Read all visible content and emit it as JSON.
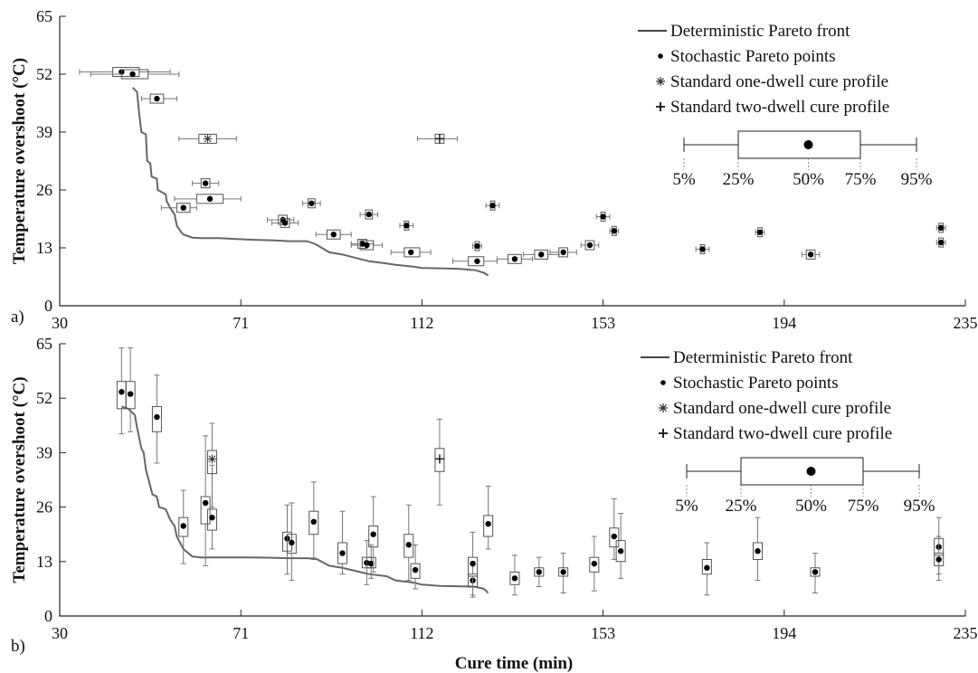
{
  "figure": {
    "xlabel": "Cure time (min)",
    "panel_tags": [
      "a)",
      "b)"
    ]
  },
  "chart_data": [
    {
      "type": "scatter",
      "panel": "a)",
      "ylabel": "Temperature overshoot (°C)",
      "xlabel": "",
      "xlim": [
        30,
        235
      ],
      "ylim": [
        0,
        65
      ],
      "x_ticks": [
        30,
        71,
        112,
        153,
        194,
        235
      ],
      "y_ticks": [
        0,
        13,
        26,
        39,
        52,
        65
      ],
      "error_axis": "x",
      "legend": {
        "placement": "top-right",
        "entries": [
          "Deterministic Pareto front",
          "Stochastic Pareto points",
          "Standard one-dwell cure profile",
          "Standard two-dwell cure profile"
        ],
        "box_labels": [
          "5%",
          "25%",
          "50%",
          "75%",
          "95%"
        ]
      },
      "series": [
        {
          "name": "Deterministic Pareto front",
          "kind": "line",
          "color": "#666666",
          "x": [
            46.5,
            47.5,
            48,
            48.5,
            49.5,
            49.8,
            50.5,
            50.8,
            52,
            52.2,
            54,
            54.2,
            55,
            56,
            56.5,
            57.5,
            58,
            60,
            62,
            66,
            70,
            74,
            78,
            82,
            86,
            88,
            91,
            94,
            98,
            100,
            104,
            106,
            110,
            112,
            116,
            120,
            124,
            126,
            127
          ],
          "y": [
            49,
            48,
            43,
            39,
            38.5,
            32.5,
            32,
            29,
            28.5,
            26,
            25,
            23.5,
            22,
            20.5,
            18,
            16.5,
            16,
            15.3,
            15.2,
            15.2,
            15,
            14.8,
            14.7,
            14.5,
            14.5,
            13.8,
            12,
            11.5,
            10.5,
            10,
            9.5,
            9.2,
            8.8,
            8.5,
            8.4,
            8.3,
            8,
            7.4,
            6.8
          ]
        },
        {
          "name": "Stochastic Pareto points",
          "kind": "points",
          "points": [
            {
              "x": 44,
              "y": 52.5,
              "lo": 34.5,
              "q1": 42,
              "q3": 48,
              "hi": 55
            },
            {
              "x": 46.5,
              "y": 52,
              "lo": 37,
              "q1": 44,
              "q3": 50,
              "hi": 57
            },
            {
              "x": 52,
              "y": 46.5,
              "lo": 48.5,
              "q1": 50.5,
              "q3": 53.5,
              "hi": 56.5
            },
            {
              "x": 63,
              "y": 27.5,
              "lo": 60,
              "q1": 62,
              "q3": 64,
              "hi": 66
            },
            {
              "x": 64,
              "y": 24,
              "lo": 56,
              "q1": 61,
              "q3": 67,
              "hi": 71
            },
            {
              "x": 58,
              "y": 22,
              "lo": 53,
              "q1": 56.5,
              "q3": 59.5,
              "hi": 61
            },
            {
              "x": 80.5,
              "y": 19.3,
              "lo": 77,
              "q1": 79.5,
              "q3": 81.5,
              "hi": 83
            },
            {
              "x": 81,
              "y": 18.6,
              "lo": 78,
              "q1": 80,
              "q3": 82,
              "hi": 84
            },
            {
              "x": 87,
              "y": 23,
              "lo": 85,
              "q1": 86.2,
              "q3": 87.8,
              "hi": 89
            },
            {
              "x": 92,
              "y": 16,
              "lo": 88,
              "q1": 90.5,
              "q3": 93.5,
              "hi": 96
            },
            {
              "x": 98.5,
              "y": 13.9,
              "lo": 96,
              "q1": 97.5,
              "q3": 99.5,
              "hi": 101
            },
            {
              "x": 99.5,
              "y": 13.6,
              "lo": 96,
              "q1": 98,
              "q3": 101,
              "hi": 103
            },
            {
              "x": 100,
              "y": 20.5,
              "lo": 98,
              "q1": 99.2,
              "q3": 100.8,
              "hi": 102
            },
            {
              "x": 108.5,
              "y": 18,
              "lo": 107,
              "q1": 108,
              "q3": 109,
              "hi": 110
            },
            {
              "x": 109.5,
              "y": 12,
              "lo": 105,
              "q1": 108,
              "q3": 111.5,
              "hi": 114
            },
            {
              "x": 124.5,
              "y": 13.4,
              "lo": 123.5,
              "q1": 124,
              "q3": 125,
              "hi": 125.5
            },
            {
              "x": 124.5,
              "y": 10,
              "lo": 119,
              "q1": 122.5,
              "q3": 126,
              "hi": 129
            },
            {
              "x": 128,
              "y": 22.5,
              "lo": 126.5,
              "q1": 127.5,
              "q3": 128.5,
              "hi": 129.5
            },
            {
              "x": 133,
              "y": 10.5,
              "lo": 129,
              "q1": 131.5,
              "q3": 134.5,
              "hi": 137
            },
            {
              "x": 139,
              "y": 11.5,
              "lo": 135,
              "q1": 137.5,
              "q3": 140.5,
              "hi": 143
            },
            {
              "x": 144,
              "y": 12,
              "lo": 141,
              "q1": 143,
              "q3": 145,
              "hi": 147
            },
            {
              "x": 150,
              "y": 13.6,
              "lo": 148,
              "q1": 149,
              "q3": 151,
              "hi": 152
            },
            {
              "x": 153,
              "y": 20,
              "lo": 151.5,
              "q1": 152.5,
              "q3": 153.5,
              "hi": 154.5
            },
            {
              "x": 155.5,
              "y": 16.8,
              "lo": 154.5,
              "q1": 155,
              "q3": 156,
              "hi": 156.5
            },
            {
              "x": 175.5,
              "y": 12.7,
              "lo": 174,
              "q1": 175,
              "q3": 176,
              "hi": 177
            },
            {
              "x": 188.5,
              "y": 16.5,
              "lo": 187.5,
              "q1": 188,
              "q3": 189,
              "hi": 189.5
            },
            {
              "x": 200,
              "y": 11.5,
              "lo": 198,
              "q1": 199,
              "q3": 201,
              "hi": 202
            },
            {
              "x": 229.5,
              "y": 17.5,
              "lo": 228.5,
              "q1": 229,
              "q3": 230,
              "hi": 230.5
            },
            {
              "x": 229.5,
              "y": 14.2,
              "lo": 228.5,
              "q1": 229,
              "q3": 230,
              "hi": 230.5
            }
          ]
        },
        {
          "name": "Standard one-dwell cure profile",
          "kind": "star",
          "points": [
            {
              "x": 63.5,
              "y": 37.5,
              "lo": 57,
              "q1": 61.5,
              "q3": 65.5,
              "hi": 70
            }
          ]
        },
        {
          "name": "Standard two-dwell cure profile",
          "kind": "plus",
          "points": [
            {
              "x": 116,
              "y": 37.5,
              "lo": 111,
              "q1": 115,
              "q3": 117,
              "hi": 120
            }
          ]
        }
      ]
    },
    {
      "type": "scatter",
      "panel": "b)",
      "ylabel": "Temperature overshoot (°C)",
      "xlabel": "Cure time (min)",
      "xlim": [
        30,
        235
      ],
      "ylim": [
        0,
        65
      ],
      "x_ticks": [
        30,
        71,
        112,
        153,
        194,
        235
      ],
      "y_ticks": [
        0,
        13,
        26,
        39,
        52,
        65
      ],
      "error_axis": "y",
      "legend": {
        "placement": "top-right",
        "entries": [
          "Deterministic Pareto front",
          "Stochastic Pareto points",
          "Standard one-dwell cure profile",
          "Standard two-dwell cure profile"
        ],
        "box_labels": [
          "5%",
          "25%",
          "50%",
          "75%",
          "95%"
        ]
      },
      "series": [
        {
          "name": "Deterministic Pareto front",
          "kind": "line",
          "color": "#666666",
          "x": [
            44,
            45.5,
            46,
            47,
            47.5,
            48.5,
            49,
            49.5,
            50.5,
            51,
            52,
            52.5,
            54,
            55,
            56,
            56.5,
            57.5,
            58,
            60,
            62,
            66,
            70,
            74,
            78,
            82,
            86,
            88,
            91,
            94,
            98,
            100,
            104,
            106,
            110,
            112,
            116,
            120,
            124,
            126,
            127
          ],
          "y": [
            50,
            49.5,
            49,
            48,
            45,
            40,
            39,
            35,
            31,
            29,
            28.5,
            26,
            25.5,
            23,
            21.5,
            19,
            17,
            16,
            14.2,
            14,
            14,
            14,
            14,
            13.9,
            13.8,
            13.8,
            13.7,
            12,
            11.5,
            10.5,
            10,
            9.5,
            8.5,
            8,
            7.5,
            7.2,
            7.1,
            7,
            6.5,
            5.5
          ]
        },
        {
          "name": "Stochastic Pareto points",
          "kind": "points",
          "points": [
            {
              "x": 44,
              "y": 53.5,
              "lo": 43.5,
              "q1": 49.5,
              "q3": 56,
              "hi": 64
            },
            {
              "x": 46,
              "y": 53,
              "lo": 44,
              "q1": 49.5,
              "q3": 56,
              "hi": 64
            },
            {
              "x": 52,
              "y": 47.5,
              "lo": 36.5,
              "q1": 44,
              "q3": 50,
              "hi": 57.5
            },
            {
              "x": 58,
              "y": 21.5,
              "lo": 12.5,
              "q1": 19,
              "q3": 23.5,
              "hi": 30
            },
            {
              "x": 63,
              "y": 27,
              "lo": 12,
              "q1": 22,
              "q3": 28.5,
              "hi": 43
            },
            {
              "x": 64.5,
              "y": 23.5,
              "lo": 16,
              "q1": 20.5,
              "q3": 25.5,
              "hi": 36
            },
            {
              "x": 81.5,
              "y": 18.5,
              "lo": 10,
              "q1": 15.5,
              "q3": 20,
              "hi": 26.5
            },
            {
              "x": 82.5,
              "y": 17.5,
              "lo": 8.5,
              "q1": 15,
              "q3": 19.5,
              "hi": 27
            },
            {
              "x": 87.5,
              "y": 22.5,
              "lo": 13.5,
              "q1": 19.5,
              "q3": 25,
              "hi": 32
            },
            {
              "x": 94,
              "y": 15,
              "lo": 10,
              "q1": 12.5,
              "q3": 17.5,
              "hi": 25
            },
            {
              "x": 99.5,
              "y": 12.7,
              "lo": 7.5,
              "q1": 11.5,
              "q3": 14,
              "hi": 18
            },
            {
              "x": 100.5,
              "y": 12.5,
              "lo": 9,
              "q1": 11.5,
              "q3": 14,
              "hi": 17
            },
            {
              "x": 101,
              "y": 19.5,
              "lo": 10.5,
              "q1": 16.5,
              "q3": 21.5,
              "hi": 28.5
            },
            {
              "x": 109,
              "y": 17,
              "lo": 8.5,
              "q1": 14,
              "q3": 19.5,
              "hi": 26.5
            },
            {
              "x": 110.5,
              "y": 11,
              "lo": 6.5,
              "q1": 9,
              "q3": 12.5,
              "hi": 17
            },
            {
              "x": 123.5,
              "y": 8.5,
              "lo": 4.5,
              "q1": 7,
              "q3": 10,
              "hi": 13
            },
            {
              "x": 123.5,
              "y": 12.5,
              "lo": 5,
              "q1": 9.5,
              "q3": 14,
              "hi": 20
            },
            {
              "x": 127,
              "y": 22,
              "lo": 16,
              "q1": 19,
              "q3": 24,
              "hi": 31
            },
            {
              "x": 133,
              "y": 9,
              "lo": 5,
              "q1": 7.5,
              "q3": 10.5,
              "hi": 14.5
            },
            {
              "x": 138.5,
              "y": 10.5,
              "lo": 7,
              "q1": 9.5,
              "q3": 11.5,
              "hi": 14
            },
            {
              "x": 144,
              "y": 10.5,
              "lo": 5.5,
              "q1": 9.5,
              "q3": 11.5,
              "hi": 15
            },
            {
              "x": 151,
              "y": 12.5,
              "lo": 6,
              "q1": 10.5,
              "q3": 14,
              "hi": 19
            },
            {
              "x": 155.5,
              "y": 19,
              "lo": 13.5,
              "q1": 16.5,
              "q3": 21,
              "hi": 28
            },
            {
              "x": 157,
              "y": 15.5,
              "lo": 9,
              "q1": 13,
              "q3": 18,
              "hi": 24.5
            },
            {
              "x": 176.5,
              "y": 11.5,
              "lo": 5,
              "q1": 10,
              "q3": 13.5,
              "hi": 17.5
            },
            {
              "x": 188,
              "y": 15.5,
              "lo": 8.5,
              "q1": 13.5,
              "q3": 17.5,
              "hi": 23.5
            },
            {
              "x": 201,
              "y": 10.5,
              "lo": 5.5,
              "q1": 9.5,
              "q3": 11.5,
              "hi": 15
            },
            {
              "x": 229,
              "y": 16.5,
              "lo": 10,
              "q1": 14.5,
              "q3": 18.5,
              "hi": 23.5
            },
            {
              "x": 229,
              "y": 13.5,
              "lo": 8.5,
              "q1": 12,
              "q3": 15,
              "hi": 19
            }
          ]
        },
        {
          "name": "Standard one-dwell cure profile",
          "kind": "star",
          "points": [
            {
              "x": 64.5,
              "y": 37.5,
              "lo": 26,
              "q1": 34,
              "q3": 39.5,
              "hi": 46
            }
          ]
        },
        {
          "name": "Standard two-dwell cure profile",
          "kind": "plus",
          "points": [
            {
              "x": 116,
              "y": 37.5,
              "lo": 26.5,
              "q1": 34.5,
              "q3": 40,
              "hi": 47
            }
          ]
        }
      ]
    }
  ]
}
